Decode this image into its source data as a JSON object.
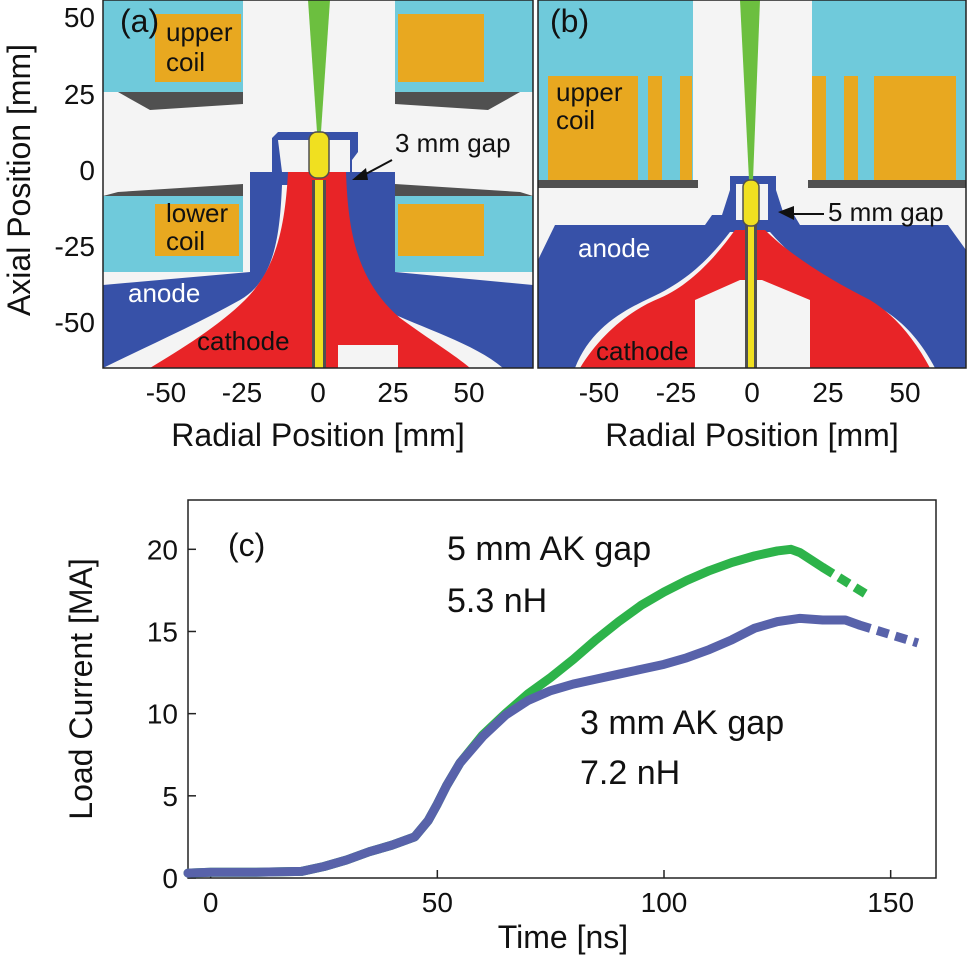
{
  "colors": {
    "frame_bg": "#f4f4f4",
    "coil_housing": "#6fcadb",
    "coil_winding": "#e8a820",
    "anode": "#3751a8",
    "cathode": "#e82427",
    "beam": "#6cbf3f",
    "target": "#f0e020",
    "green_series": "#2db34a",
    "blue_series": "#5862aa",
    "dark_gray": "#505050"
  },
  "panel_a": {
    "label": "(a)",
    "upper_coil": [
      "upper",
      "coil"
    ],
    "lower_coil": [
      "lower",
      "coil"
    ],
    "anode": "anode",
    "cathode": "cathode",
    "gap": "3 mm gap",
    "ylabel": "Axial Position [mm]",
    "xlabel": "Radial Position [mm]",
    "yticks": [
      "50",
      "25",
      "0",
      "-25",
      "-50"
    ],
    "xticks": [
      "-50",
      "-25",
      "0",
      "25",
      "50"
    ]
  },
  "panel_b": {
    "label": "(b)",
    "upper_coil": [
      "upper",
      "coil"
    ],
    "anode": "anode",
    "cathode": "cathode",
    "gap": "5 mm gap",
    "xlabel": "Radial Position [mm]",
    "xticks": [
      "-50",
      "-25",
      "0",
      "25",
      "50"
    ]
  },
  "chart_data": {
    "type": "line",
    "panel_label": "(c)",
    "title": "",
    "xlabel": "Time [ns]",
    "ylabel": "Load Current [MA]",
    "xlim": [
      -5,
      160
    ],
    "ylim": [
      0,
      23
    ],
    "xticks": [
      0,
      50,
      100,
      150
    ],
    "yticks": [
      0,
      5,
      10,
      15,
      20
    ],
    "grid": false,
    "series": [
      {
        "name": "5 mm AK gap",
        "annotation": [
          "5 mm AK gap",
          "5.3 nH"
        ],
        "color": "#2db34a",
        "x": [
          -5,
          0,
          10,
          20,
          25,
          30,
          35,
          40,
          45,
          48,
          50,
          52,
          55,
          60,
          65,
          70,
          75,
          80,
          85,
          90,
          95,
          100,
          105,
          110,
          115,
          120,
          125,
          128,
          130,
          135
        ],
        "y": [
          0.3,
          0.35,
          0.35,
          0.4,
          0.7,
          1.1,
          1.6,
          2.0,
          2.5,
          3.5,
          4.5,
          5.6,
          7.0,
          8.7,
          10.0,
          11.2,
          12.2,
          13.3,
          14.5,
          15.6,
          16.6,
          17.4,
          18.1,
          18.7,
          19.2,
          19.6,
          19.9,
          20.0,
          19.8,
          18.9
        ],
        "dashed_tail": {
          "x": [
            135,
            145
          ],
          "y": [
            18.9,
            17.2
          ]
        }
      },
      {
        "name": "3 mm AK gap",
        "annotation": [
          "3 mm AK gap",
          "7.2 nH"
        ],
        "color": "#5862aa",
        "x": [
          -5,
          0,
          10,
          20,
          25,
          30,
          35,
          40,
          45,
          48,
          50,
          52,
          55,
          60,
          65,
          70,
          75,
          80,
          85,
          90,
          95,
          100,
          105,
          110,
          115,
          120,
          125,
          130,
          135,
          140,
          143
        ],
        "y": [
          0.3,
          0.35,
          0.35,
          0.4,
          0.7,
          1.1,
          1.6,
          2.0,
          2.5,
          3.5,
          4.5,
          5.6,
          7.0,
          8.6,
          9.9,
          10.8,
          11.4,
          11.8,
          12.1,
          12.4,
          12.7,
          13.0,
          13.4,
          13.9,
          14.5,
          15.2,
          15.6,
          15.8,
          15.7,
          15.7,
          15.4
        ],
        "dashed_tail": {
          "x": [
            143,
            156
          ],
          "y": [
            15.4,
            14.3
          ]
        }
      }
    ]
  }
}
